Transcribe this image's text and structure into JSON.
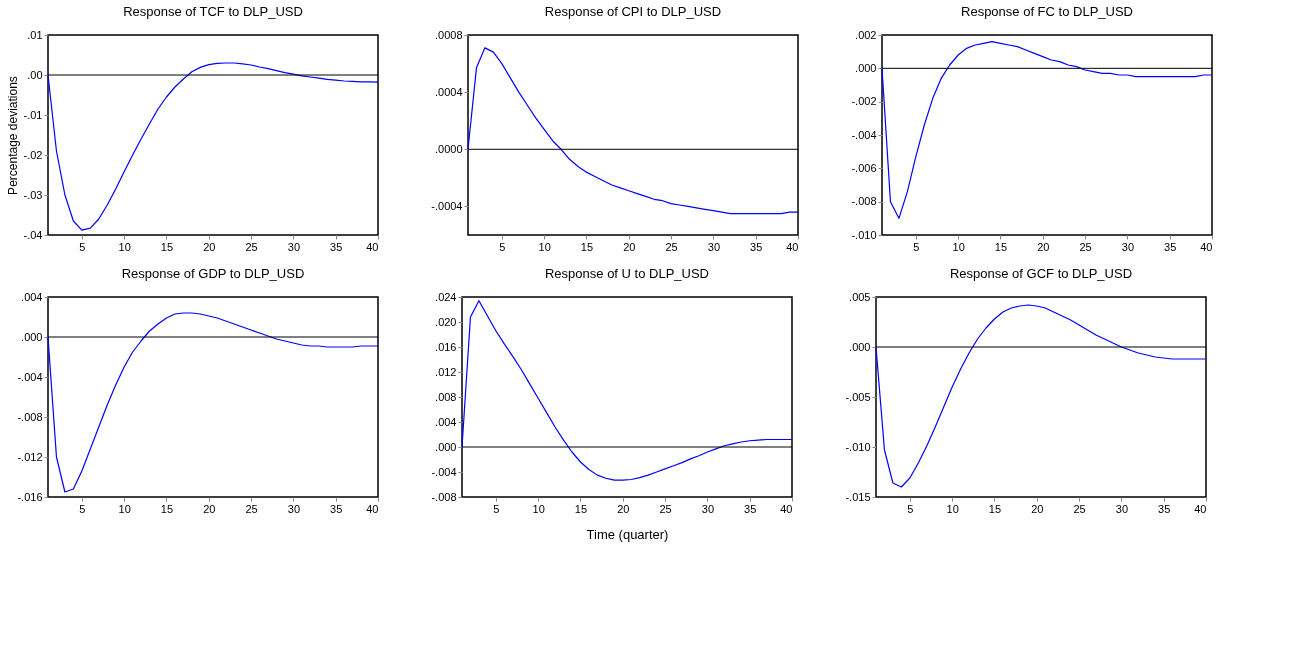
{
  "chart_data": [
    {
      "type": "line",
      "title": "Response of TCF to DLP_USD",
      "ylabel": "Percentage deviations",
      "x": [
        1,
        2,
        3,
        4,
        5,
        6,
        7,
        8,
        9,
        10,
        11,
        12,
        13,
        14,
        15,
        16,
        17,
        18,
        19,
        20,
        21,
        22,
        23,
        24,
        25,
        26,
        27,
        28,
        29,
        30,
        31,
        32,
        33,
        34,
        35,
        36,
        37,
        38,
        39,
        40
      ],
      "xlim": [
        1,
        40
      ],
      "xticks": [
        5,
        10,
        15,
        20,
        25,
        30,
        35,
        40
      ],
      "ylim": [
        -0.04,
        0.01
      ],
      "yticks": [
        {
          "value": 0.01,
          "label": ".01"
        },
        {
          "value": 0,
          "label": ".00"
        },
        {
          "value": -0.01,
          "label": "-.01"
        },
        {
          "value": -0.02,
          "label": "-.02"
        },
        {
          "value": -0.03,
          "label": "-.03"
        },
        {
          "value": -0.04,
          "label": "-.04"
        }
      ],
      "grid": false,
      "ref_lines": [
        {
          "axis": "y",
          "value": 0,
          "color": "#000000"
        }
      ],
      "series": [
        {
          "color": "#0000ff",
          "values": [
            0,
            -0.019,
            -0.03,
            -0.0365,
            -0.0388,
            -0.0383,
            -0.036,
            -0.0325,
            -0.0285,
            -0.0242,
            -0.02,
            -0.016,
            -0.0122,
            -0.0085,
            -0.0055,
            -0.003,
            -0.001,
            0.0008,
            0.0019,
            0.0026,
            0.0029,
            0.003,
            0.003,
            0.0028,
            0.0025,
            0.002,
            0.0016,
            0.0011,
            0.0006,
            0.0002,
            -0.0002,
            -0.0005,
            -0.0008,
            -0.0011,
            -0.0013,
            -0.0015,
            -0.0016,
            -0.0017,
            -0.0017,
            -0.0018
          ]
        }
      ]
    },
    {
      "type": "line",
      "title": "Response of CPI to DLP_USD",
      "x": [
        1,
        2,
        3,
        4,
        5,
        6,
        7,
        8,
        9,
        10,
        11,
        12,
        13,
        14,
        15,
        16,
        17,
        18,
        19,
        20,
        21,
        22,
        23,
        24,
        25,
        26,
        27,
        28,
        29,
        30,
        31,
        32,
        33,
        34,
        35,
        36,
        37,
        38,
        39,
        40
      ],
      "xlim": [
        1,
        40
      ],
      "xticks": [
        5,
        10,
        15,
        20,
        25,
        30,
        35,
        40
      ],
      "ylim": [
        -0.0006,
        0.0008
      ],
      "yticks": [
        {
          "value": 0.0008,
          "label": ".0008"
        },
        {
          "value": 0.0004,
          "label": ".0004"
        },
        {
          "value": 0,
          "label": ".0000"
        },
        {
          "value": -0.0004,
          "label": "-.0004"
        }
      ],
      "grid": false,
      "ref_lines": [
        {
          "axis": "y",
          "value": 0,
          "color": "#000000"
        }
      ],
      "series": [
        {
          "color": "#0000ff",
          "values": [
            0,
            0.00057,
            0.00071,
            0.00068,
            0.0006,
            0.0005,
            0.0004,
            0.00031,
            0.00022,
            0.00014,
            6e-05,
            0,
            -7e-05,
            -0.00012,
            -0.00016,
            -0.00019,
            -0.00022,
            -0.00025,
            -0.00027,
            -0.00029,
            -0.00031,
            -0.00033,
            -0.00035,
            -0.00036,
            -0.00038,
            -0.00039,
            -0.0004,
            -0.00041,
            -0.00042,
            -0.00043,
            -0.00044,
            -0.00045,
            -0.00045,
            -0.00045,
            -0.00045,
            -0.00045,
            -0.00045,
            -0.00045,
            -0.00044,
            -0.00044
          ]
        }
      ]
    },
    {
      "type": "line",
      "title": "Response of FC to DLP_USD",
      "x": [
        1,
        2,
        3,
        4,
        5,
        6,
        7,
        8,
        9,
        10,
        11,
        12,
        13,
        14,
        15,
        16,
        17,
        18,
        19,
        20,
        21,
        22,
        23,
        24,
        25,
        26,
        27,
        28,
        29,
        30,
        31,
        32,
        33,
        34,
        35,
        36,
        37,
        38,
        39,
        40
      ],
      "xlim": [
        1,
        40
      ],
      "xticks": [
        5,
        10,
        15,
        20,
        25,
        30,
        35,
        40
      ],
      "ylim": [
        -0.01,
        0.002
      ],
      "yticks": [
        {
          "value": 0.002,
          "label": ".002"
        },
        {
          "value": 0,
          "label": ".000"
        },
        {
          "value": -0.002,
          "label": "-.002"
        },
        {
          "value": -0.004,
          "label": "-.004"
        },
        {
          "value": -0.006,
          "label": "-.006"
        },
        {
          "value": -0.008,
          "label": "-.008"
        },
        {
          "value": -0.01,
          "label": "-.010"
        }
      ],
      "grid": false,
      "ref_lines": [
        {
          "axis": "y",
          "value": 0,
          "color": "#000000"
        }
      ],
      "series": [
        {
          "color": "#0000ff",
          "values": [
            0,
            -0.008,
            -0.009,
            -0.0074,
            -0.0053,
            -0.0034,
            -0.0018,
            -0.0006,
            0.0002,
            0.0008,
            0.0012,
            0.0014,
            0.0015,
            0.0016,
            0.0015,
            0.0014,
            0.0013,
            0.0011,
            0.0009,
            0.0007,
            0.0005,
            0.0004,
            0.0002,
            0.0001,
            -0.0001,
            -0.0002,
            -0.0003,
            -0.0003,
            -0.0004,
            -0.0004,
            -0.0005,
            -0.0005,
            -0.0005,
            -0.0005,
            -0.0005,
            -0.0005,
            -0.0005,
            -0.0005,
            -0.0004,
            -0.0004
          ]
        }
      ]
    },
    {
      "type": "line",
      "title": "Response of GDP to DLP_USD",
      "x": [
        1,
        2,
        3,
        4,
        5,
        6,
        7,
        8,
        9,
        10,
        11,
        12,
        13,
        14,
        15,
        16,
        17,
        18,
        19,
        20,
        21,
        22,
        23,
        24,
        25,
        26,
        27,
        28,
        29,
        30,
        31,
        32,
        33,
        34,
        35,
        36,
        37,
        38,
        39,
        40
      ],
      "xlim": [
        1,
        40
      ],
      "xticks": [
        5,
        10,
        15,
        20,
        25,
        30,
        35,
        40
      ],
      "ylim": [
        -0.016,
        0.004
      ],
      "yticks": [
        {
          "value": 0.004,
          "label": ".004"
        },
        {
          "value": 0,
          "label": ".000"
        },
        {
          "value": -0.004,
          "label": "-.004"
        },
        {
          "value": -0.008,
          "label": "-.008"
        },
        {
          "value": -0.012,
          "label": "-.012"
        },
        {
          "value": -0.016,
          "label": "-.016"
        }
      ],
      "grid": false,
      "ref_lines": [
        {
          "axis": "y",
          "value": 0,
          "color": "#000000"
        }
      ],
      "series": [
        {
          "color": "#0000ff",
          "values": [
            0,
            -0.012,
            -0.0155,
            -0.0152,
            -0.0134,
            -0.0112,
            -0.009,
            -0.0068,
            -0.0048,
            -0.003,
            -0.0015,
            -0.0004,
            0.0006,
            0.0013,
            0.0019,
            0.0023,
            0.0024,
            0.0024,
            0.0023,
            0.0021,
            0.0019,
            0.0016,
            0.0013,
            0.001,
            0.0007,
            0.0004,
            0.0001,
            -0.0002,
            -0.0004,
            -0.0006,
            -0.0008,
            -0.0009,
            -0.0009,
            -0.001,
            -0.001,
            -0.001,
            -0.001,
            -0.0009,
            -0.0009,
            -0.0009
          ]
        }
      ]
    },
    {
      "type": "line",
      "title": "Response of U to DLP_USD",
      "xlabel": "Time (quarter)",
      "x": [
        1,
        2,
        3,
        4,
        5,
        6,
        7,
        8,
        9,
        10,
        11,
        12,
        13,
        14,
        15,
        16,
        17,
        18,
        19,
        20,
        21,
        22,
        23,
        24,
        25,
        26,
        27,
        28,
        29,
        30,
        31,
        32,
        33,
        34,
        35,
        36,
        37,
        38,
        39,
        40
      ],
      "xlim": [
        1,
        40
      ],
      "xticks": [
        5,
        10,
        15,
        20,
        25,
        30,
        35,
        40
      ],
      "ylim": [
        -0.008,
        0.024
      ],
      "yticks": [
        {
          "value": 0.024,
          "label": ".024"
        },
        {
          "value": 0.02,
          "label": ".020"
        },
        {
          "value": 0.016,
          "label": ".016"
        },
        {
          "value": 0.012,
          "label": ".012"
        },
        {
          "value": 0.008,
          "label": ".008"
        },
        {
          "value": 0.004,
          "label": ".004"
        },
        {
          "value": 0,
          "label": ".000"
        },
        {
          "value": -0.004,
          "label": "-.004"
        },
        {
          "value": -0.008,
          "label": "-.008"
        }
      ],
      "grid": false,
      "ref_lines": [
        {
          "axis": "y",
          "value": 0,
          "color": "#000000"
        }
      ],
      "series": [
        {
          "color": "#0000ff",
          "values": [
            0,
            0.0208,
            0.0234,
            0.021,
            0.0186,
            0.0165,
            0.0145,
            0.0124,
            0.0101,
            0.0078,
            0.0055,
            0.0032,
            0.0011,
            -0.0008,
            -0.0024,
            -0.0036,
            -0.0045,
            -0.005,
            -0.0053,
            -0.0053,
            -0.0052,
            -0.0049,
            -0.0045,
            -0.004,
            -0.0035,
            -0.003,
            -0.0025,
            -0.0019,
            -0.0014,
            -0.0008,
            -0.0003,
            0.0002,
            0.0005,
            0.0008,
            0.001,
            0.0011,
            0.0012,
            0.0012,
            0.0012,
            0.0012
          ]
        }
      ]
    },
    {
      "type": "line",
      "title": "Response of GCF to DLP_USD",
      "x": [
        1,
        2,
        3,
        4,
        5,
        6,
        7,
        8,
        9,
        10,
        11,
        12,
        13,
        14,
        15,
        16,
        17,
        18,
        19,
        20,
        21,
        22,
        23,
        24,
        25,
        26,
        27,
        28,
        29,
        30,
        31,
        32,
        33,
        34,
        35,
        36,
        37,
        38,
        39,
        40
      ],
      "xlim": [
        1,
        40
      ],
      "xticks": [
        5,
        10,
        15,
        20,
        25,
        30,
        35,
        40
      ],
      "ylim": [
        -0.015,
        0.005
      ],
      "yticks": [
        {
          "value": 0.005,
          "label": ".005"
        },
        {
          "value": 0,
          "label": ".000"
        },
        {
          "value": -0.005,
          "label": "-.005"
        },
        {
          "value": -0.01,
          "label": "-.010"
        },
        {
          "value": -0.015,
          "label": "-.015"
        }
      ],
      "grid": false,
      "ref_lines": [
        {
          "axis": "y",
          "value": 0,
          "color": "#000000"
        }
      ],
      "series": [
        {
          "color": "#0000ff",
          "values": [
            0,
            -0.0103,
            -0.0136,
            -0.014,
            -0.0131,
            -0.0116,
            -0.0099,
            -0.008,
            -0.006,
            -0.004,
            -0.0022,
            -0.0006,
            0.0008,
            0.0019,
            0.0028,
            0.0035,
            0.0039,
            0.0041,
            0.0042,
            0.0041,
            0.0039,
            0.0035,
            0.0031,
            0.0027,
            0.0022,
            0.0017,
            0.0012,
            0.0008,
            0.0004,
            0.0,
            -0.0003,
            -0.0006,
            -0.0008,
            -0.001,
            -0.0011,
            -0.0012,
            -0.0012,
            -0.0012,
            -0.0012,
            -0.0012
          ]
        }
      ]
    }
  ]
}
